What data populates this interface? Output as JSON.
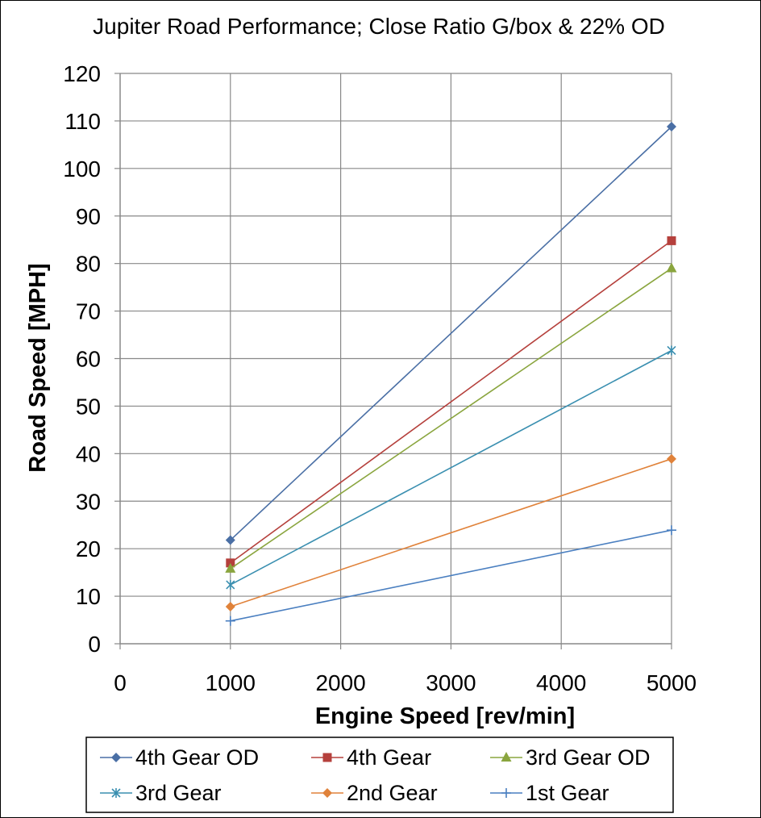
{
  "chart_data": {
    "type": "line",
    "title": "Jupiter Road Performance; Close Ratio G/box & 22% OD",
    "xlabel": "Engine Speed [rev/min]",
    "ylabel": "Road Speed [MPH]",
    "xlim": [
      0,
      5000
    ],
    "ylim": [
      0,
      120
    ],
    "xticks": [
      0,
      1000,
      2000,
      3000,
      4000,
      5000
    ],
    "yticks": [
      0,
      10,
      20,
      30,
      40,
      50,
      60,
      70,
      80,
      90,
      100,
      110,
      120
    ],
    "grid": true,
    "legend_position": "bottom",
    "x": [
      1000,
      5000
    ],
    "series": [
      {
        "name": "4th Gear OD",
        "values": [
          21.8,
          108.8
        ],
        "color": "#4a6fa5",
        "marker": "diamond"
      },
      {
        "name": "4th Gear",
        "values": [
          17.0,
          84.8
        ],
        "color": "#b5403c",
        "marker": "square"
      },
      {
        "name": "3rd Gear OD",
        "values": [
          15.8,
          79.0
        ],
        "color": "#8aa53e",
        "marker": "triangle"
      },
      {
        "name": "3rd Gear",
        "values": [
          12.4,
          61.7
        ],
        "color": "#3a8fb0",
        "marker": "star"
      },
      {
        "name": "2nd Gear",
        "values": [
          7.8,
          38.9
        ],
        "color": "#e0823a",
        "marker": "diamond"
      },
      {
        "name": "1st Gear",
        "values": [
          4.8,
          23.9
        ],
        "color": "#4a7fc0",
        "marker": "plus"
      }
    ]
  }
}
